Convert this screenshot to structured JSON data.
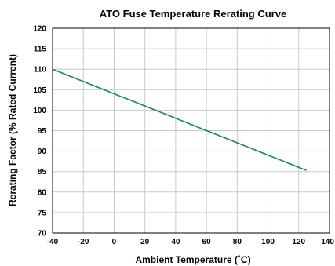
{
  "chart_data": {
    "type": "line",
    "title": "ATO Fuse Temperature Rerating Curve",
    "xlabel": "Ambient Temperature (˚C)",
    "ylabel": "Rerating Factor (% Rated Current)",
    "xlim": [
      -40,
      140
    ],
    "ylim": [
      70,
      120
    ],
    "xticks": [
      -40,
      -20,
      0,
      20,
      40,
      60,
      80,
      100,
      120,
      140
    ],
    "yticks": [
      70,
      75,
      80,
      85,
      90,
      95,
      100,
      105,
      110,
      115,
      120
    ],
    "grid": true,
    "legend": "none",
    "series": [
      {
        "x": [
          -40,
          125
        ],
        "y": [
          110,
          85.3
        ],
        "color": "#1a8a4a"
      }
    ],
    "colors": {
      "line": "#1a8a4a",
      "grid": "#c8c8c8",
      "axis": "#000000"
    }
  }
}
